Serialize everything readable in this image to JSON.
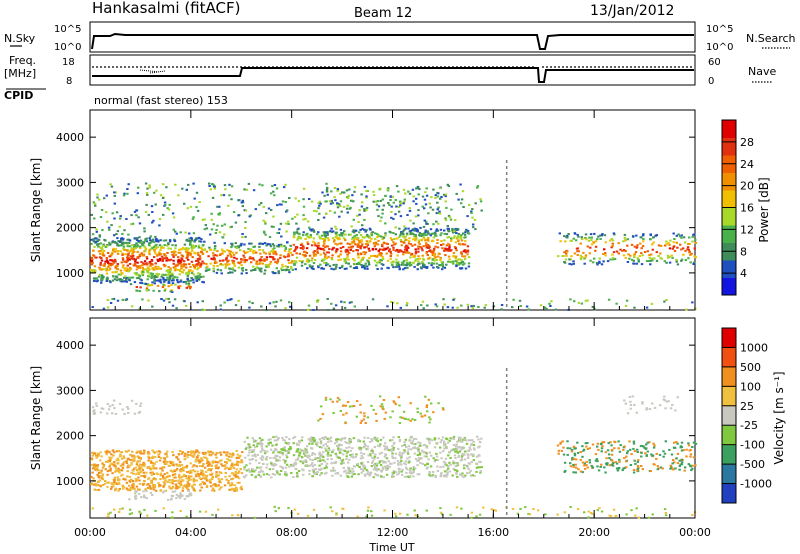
{
  "header": {
    "station": "Hankasalmi (fitACF)",
    "beam": "Beam 12",
    "date": "13/Jan/2012"
  },
  "top_panels": {
    "nsky_label": "N.Sky",
    "nsky_ticks": [
      "10^5",
      "10^0"
    ],
    "nsearch_label": "N.Search",
    "nsearch_ticks": [
      "10^5",
      "10^0"
    ],
    "freq_label": "Freq.",
    "freq_unit": "[MHz]",
    "freq_ticks": [
      "18",
      "8"
    ],
    "nave_label": "Nave",
    "nave_ticks": [
      "60",
      "0"
    ],
    "cpid_label": "CPID",
    "cpid_value": "normal (fast stereo) 153"
  },
  "chart_data": [
    {
      "type": "heatmap",
      "name": "power",
      "ylabel": "Slant Range [km]",
      "ylim": [
        180,
        4600
      ],
      "yticks": [
        "1000",
        "2000",
        "3000",
        "4000"
      ],
      "ytick_values": [
        1000,
        2000,
        3000,
        4000
      ],
      "colorbar_label": "Power [dB]",
      "colorbar_ticks": [
        "4",
        "8",
        "12",
        "16",
        "20",
        "24",
        "28"
      ],
      "colorbar_colors": [
        "#1414e0",
        "#2050c0",
        "#3d8c5a",
        "#4ab04a",
        "#a8d828",
        "#f0c000",
        "#f09000",
        "#f06000",
        "#e03010",
        "#e00000"
      ]
    },
    {
      "type": "heatmap",
      "name": "velocity",
      "ylabel": "Slant Range [km]",
      "ylim": [
        180,
        4600
      ],
      "yticks": [
        "1000",
        "2000",
        "3000",
        "4000"
      ],
      "ytick_values": [
        1000,
        2000,
        3000,
        4000
      ],
      "colorbar_label": "Velocity [m s⁻¹]",
      "colorbar_ticks": [
        "1000",
        "500",
        "100",
        "25",
        "-25",
        "-100",
        "-500",
        "-1000"
      ],
      "colorbar_colors": [
        "#2040c0",
        "#2a78a0",
        "#3ca060",
        "#80c840",
        "#c8c8c0",
        "#f0c040",
        "#f09020",
        "#f05010",
        "#e00000"
      ]
    }
  ],
  "xaxis": {
    "label": "Time UT",
    "ticks": [
      "00:00",
      "04:00",
      "08:00",
      "12:00",
      "16:00",
      "20:00",
      "00:00"
    ],
    "tick_hours": [
      0,
      4,
      8,
      12,
      16,
      20,
      24
    ]
  }
}
